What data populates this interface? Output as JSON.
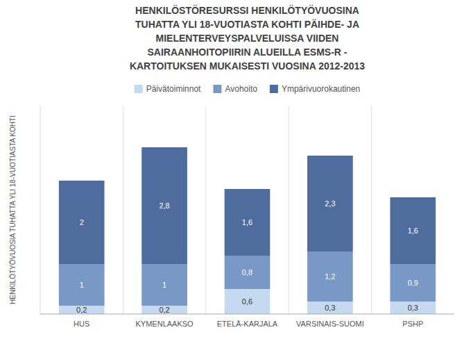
{
  "chart_data": {
    "type": "bar",
    "stacked": true,
    "title": "HENKILÖSTÖRESURSSI HENKILÖTYÖVUOSINA\nTUHATTA YLI 18-VUOTIASTA KOHTI PÄIHDE- JA\nMIELENTERVEYSPALVELUISSA VIIDEN\nSAIRAANHOITOPIIRIN ALUEILLA ESMS-R -\nKARTOITUKSEN MUKAISESTI VUOSINA 2012-2013",
    "ylabel": "HENKILÖTYÖVUOSIA TUHATTA YLI 18-VUOTIASTA KOHTI",
    "categories": [
      "HUS",
      "KYMENLAAKSO",
      "ETELÄ-KARJALA",
      "VARSINAIS-SUOMI",
      "PSHP"
    ],
    "series": [
      {
        "name": "Päivätoiminnot",
        "color": "#c5d9f1",
        "values": [
          0.2,
          0.2,
          0.6,
          0.3,
          0.3
        ],
        "value_labels": [
          "0,2",
          "0,2",
          "0,6",
          "0,3",
          "0,3"
        ]
      },
      {
        "name": "Avohoito",
        "color": "#7899c5",
        "values": [
          1.0,
          1.0,
          0.8,
          1.2,
          0.9
        ],
        "value_labels": [
          "1",
          "1",
          "0,8",
          "1,2",
          "0,9"
        ]
      },
      {
        "name": "Ympärivuorokautinen",
        "color": "#4e6d9e",
        "values": [
          2.0,
          2.8,
          1.6,
          2.3,
          1.6
        ],
        "value_labels": [
          "2",
          "2,8",
          "1,6",
          "2,3",
          "1,6"
        ]
      }
    ],
    "ylim": [
      0,
      5
    ],
    "tick_labels": "x",
    "data_labels": true,
    "legend": "top",
    "grid": false
  }
}
